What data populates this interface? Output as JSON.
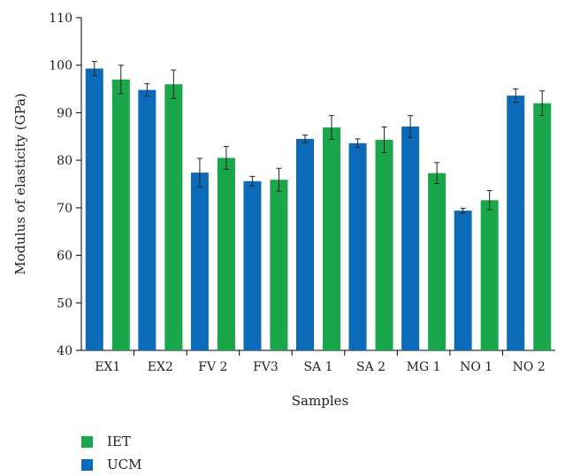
{
  "chart_data": {
    "type": "bar",
    "title": "",
    "xlabel": "Samples",
    "ylabel": "Modulus of elasticity (GPa)",
    "ylim": [
      40,
      110
    ],
    "yticks": [
      40,
      50,
      60,
      70,
      80,
      90,
      100,
      110
    ],
    "categories": [
      "EX1",
      "EX2",
      "FV 2",
      "FV3",
      "SA 1",
      "SA 2",
      "MG 1",
      "NO 1",
      "NO 2"
    ],
    "series": [
      {
        "name": "UCM",
        "color": "#0b6bb8",
        "values": [
          99.3,
          94.8,
          77.4,
          75.6,
          84.5,
          83.6,
          87.1,
          69.4,
          93.6
        ],
        "errors": [
          1.5,
          1.3,
          3.0,
          1.0,
          0.8,
          0.9,
          2.3,
          0.5,
          1.4
        ]
      },
      {
        "name": "IET",
        "color": "#1aa64a",
        "values": [
          97.0,
          96.0,
          80.5,
          75.9,
          86.9,
          84.3,
          77.3,
          71.6,
          92.0
        ],
        "errors": [
          3.0,
          3.0,
          2.4,
          2.4,
          2.5,
          2.7,
          2.2,
          2.0,
          2.6
        ]
      }
    ],
    "legend": {
      "position": "bottom-left",
      "entries": [
        {
          "label": "IET",
          "color": "#1aa64a"
        },
        {
          "label": "UCM",
          "color": "#0b6bb8"
        }
      ]
    },
    "grid": false
  }
}
